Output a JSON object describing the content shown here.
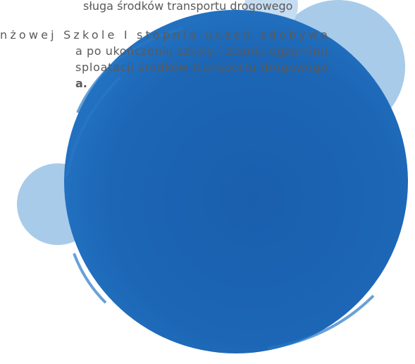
{
  "lines": [
    "sługa środków transportu drogowego",
    "nżowej Szkole I stopnia uczeń zdobywa",
    "a po ukończeniu szkoły i zdaniu egzaminu",
    "sploatacji środków transportu drogowego",
    "a."
  ]
}
